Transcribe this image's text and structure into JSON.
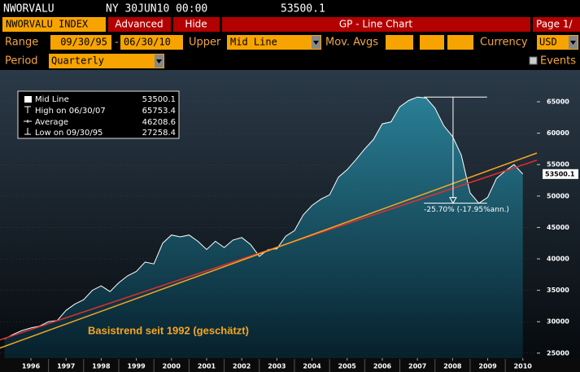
{
  "header": {
    "ticker": "NWORVALU",
    "time": "NY 30JUN10 00:00"
  },
  "toolbar": {
    "security": "NWORVALU INDEX",
    "advanced": "Advanced",
    "hide": "Hide",
    "function": "GP - Line Chart",
    "page": "Page 1/"
  },
  "controls": {
    "range_label": "Range",
    "start": "09/30/95",
    "dash": "-",
    "end": "06/30/10",
    "upper_label": "Upper",
    "upper": "Mid Line",
    "mov_avgs_label": "Mov. Avgs",
    "currency_label": "Currency",
    "currency": "USD",
    "period_label": "Period",
    "period": "Quarterly",
    "events": "Events"
  },
  "chart_data": {
    "type": "line",
    "x": [
      1995.75,
      1996.0,
      1996.25,
      1996.5,
      1996.75,
      1997.0,
      1997.25,
      1997.5,
      1997.75,
      1998.0,
      1998.25,
      1998.5,
      1998.75,
      1999.0,
      1999.25,
      1999.5,
      1999.75,
      2000.0,
      2000.25,
      2000.5,
      2000.75,
      2001.0,
      2001.25,
      2001.5,
      2001.75,
      2002.0,
      2002.25,
      2002.5,
      2002.75,
      2003.0,
      2003.25,
      2003.5,
      2003.75,
      2004.0,
      2004.25,
      2004.5,
      2004.75,
      2005.0,
      2005.25,
      2005.5,
      2005.75,
      2006.0,
      2006.25,
      2006.5,
      2006.75,
      2007.0,
      2007.25,
      2007.5,
      2007.75,
      2008.0,
      2008.25,
      2008.5,
      2008.75,
      2009.0,
      2009.25,
      2009.5,
      2009.75,
      2010.0,
      2010.25,
      2010.5
    ],
    "series": [
      {
        "name": "Mid Line",
        "color": "#ffffff",
        "fill": "#1f6f86",
        "values": [
          27258.4,
          28000,
          28600,
          29000,
          29300,
          30000,
          30200,
          31800,
          32800,
          33500,
          35000,
          35700,
          34800,
          36200,
          37300,
          38000,
          39500,
          39200,
          42500,
          43800,
          43500,
          43800,
          42800,
          41500,
          42800,
          41800,
          43000,
          43400,
          42300,
          40400,
          41500,
          41600,
          43600,
          44500,
          47000,
          48500,
          49500,
          50200,
          53000,
          54200,
          55800,
          57500,
          59000,
          61500,
          61800,
          64200,
          65200,
          65753.4,
          65600,
          64000,
          61200,
          59500,
          56500,
          50500,
          48855,
          49800,
          52800,
          54000,
          55000,
          53500.1
        ]
      }
    ],
    "last_value": 53500.1,
    "stats": [
      {
        "label": "High on 06/30/07",
        "value": 65753.4
      },
      {
        "label": "Average",
        "value": 46208.6
      },
      {
        "label": "Low on 09/30/95",
        "value": 27258.4
      }
    ],
    "trendlines": [
      {
        "color": "#e0302e",
        "x": [
          1995.62,
          2010.9
        ],
        "values": [
          27100,
          55700
        ]
      },
      {
        "color": "#f5a623",
        "x": [
          1995.62,
          2010.9
        ],
        "values": [
          25800,
          56850
        ],
        "label": "Basistrend seit 1992 (geschätzt)"
      }
    ],
    "drawdown": {
      "label": "-25.70% (-17.95%ann.)",
      "from": 47,
      "to": 54
    },
    "xlim": [
      1995.62,
      2010.9
    ],
    "ylim": [
      24200,
      69800
    ],
    "yticks": [
      25000,
      30000,
      35000,
      40000,
      45000,
      50000,
      55000,
      60000,
      65000
    ],
    "xticks": [
      {
        "value": 1996.5,
        "label": "1996"
      },
      {
        "value": 1997.5,
        "label": "1997"
      },
      {
        "value": 1998.5,
        "label": "1998"
      },
      {
        "value": 1999.5,
        "label": "1999"
      },
      {
        "value": 2000.5,
        "label": "2000"
      },
      {
        "value": 2001.5,
        "label": "2001"
      },
      {
        "value": 2002.5,
        "label": "2002"
      },
      {
        "value": 2003.5,
        "label": "2003"
      },
      {
        "value": 2004.5,
        "label": "2004"
      },
      {
        "value": 2005.5,
        "label": "2005"
      },
      {
        "value": 2006.5,
        "label": "2006"
      },
      {
        "value": 2007.5,
        "label": "2007"
      },
      {
        "value": 2008.5,
        "label": "2008"
      },
      {
        "value": 2009.5,
        "label": "2009"
      },
      {
        "value": 2010.5,
        "label": "2010"
      }
    ]
  }
}
